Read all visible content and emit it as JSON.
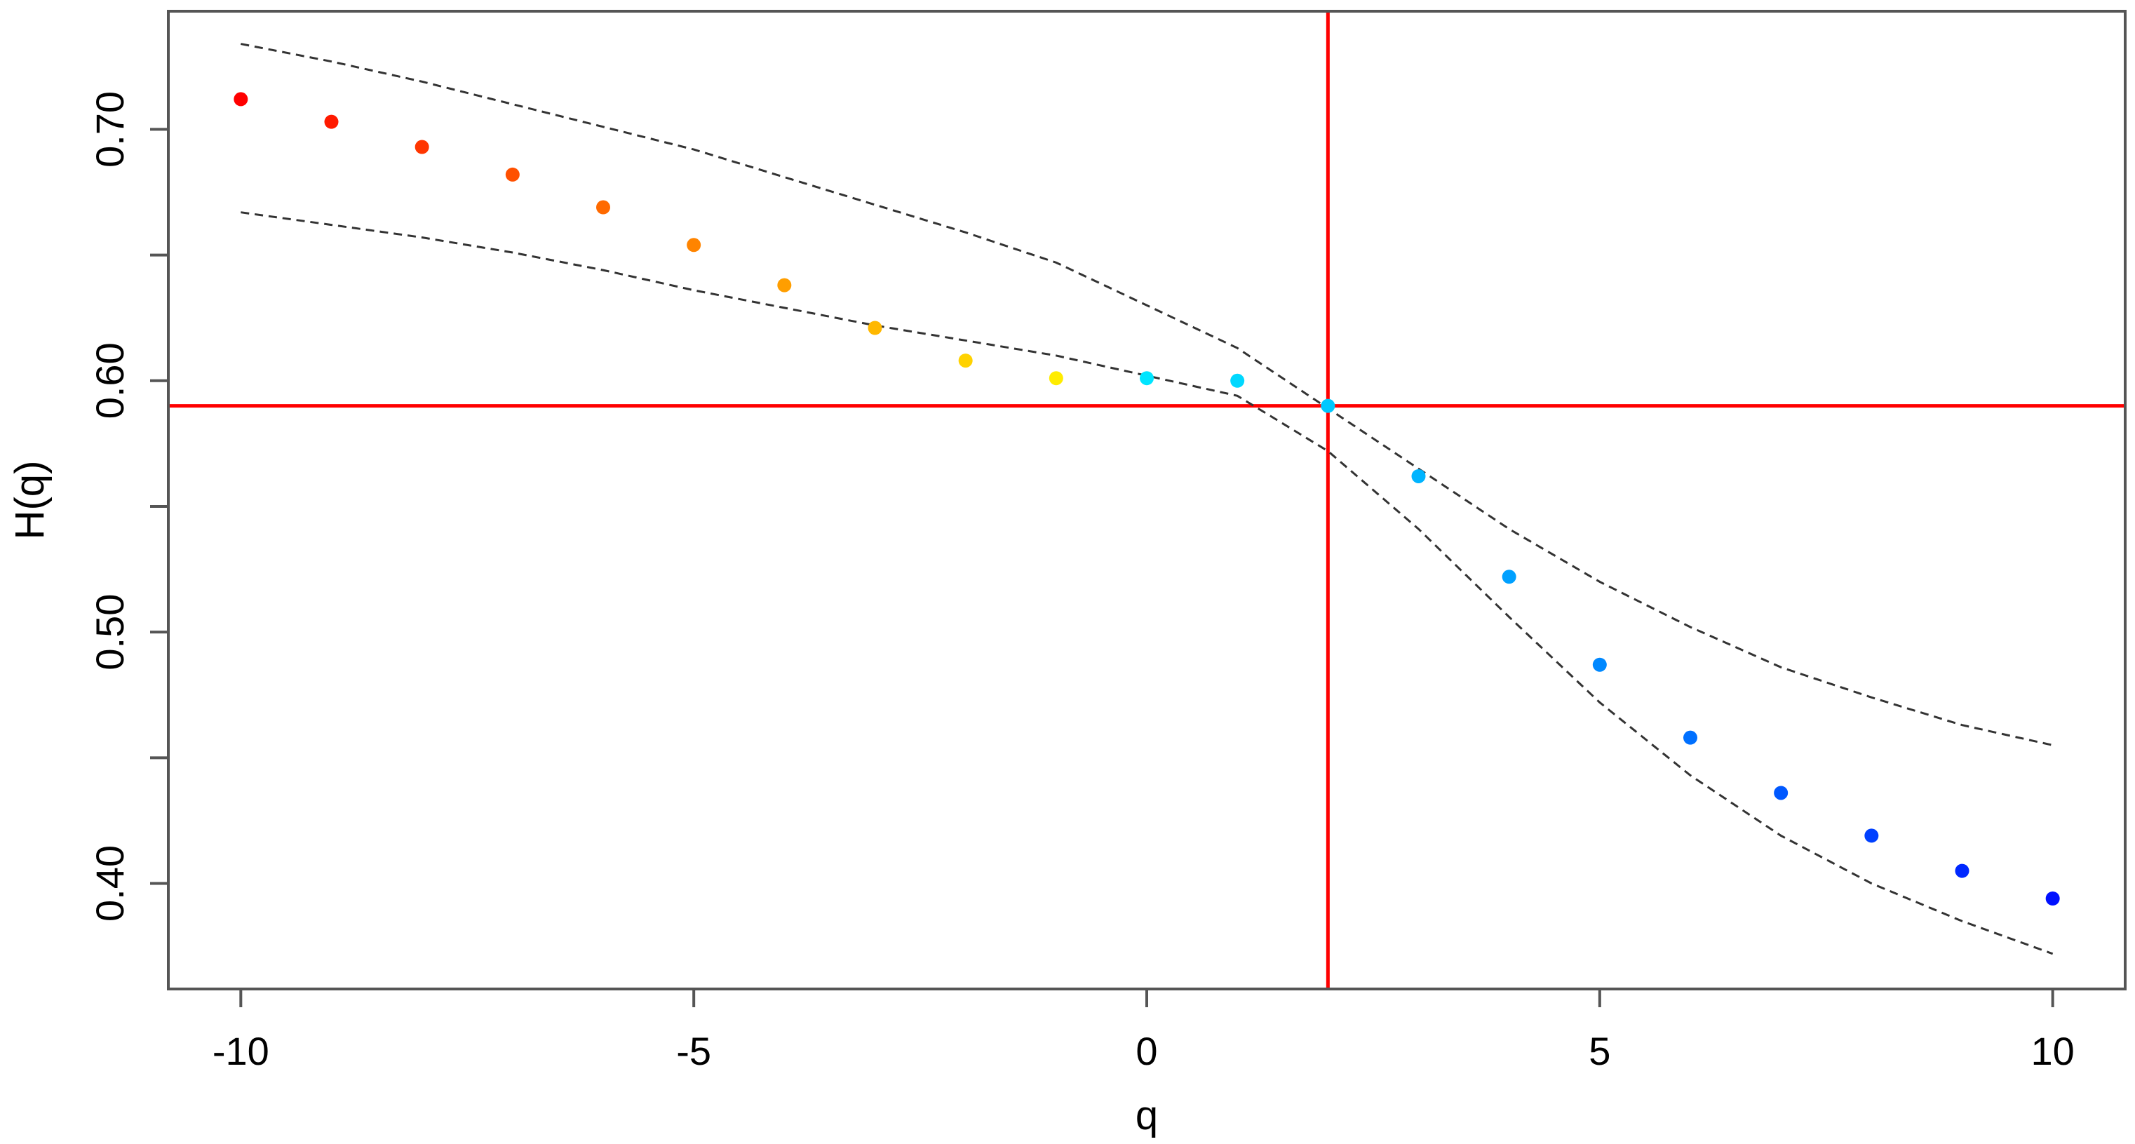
{
  "chart_data": {
    "type": "scatter",
    "title": "",
    "xlabel": "q",
    "ylabel": "H(q)",
    "xlim": [
      -10.8,
      10.8
    ],
    "ylim": [
      0.358,
      0.747
    ],
    "x_ticks": [
      -10,
      -5,
      0,
      5,
      10
    ],
    "x_tick_labels": [
      "-10",
      "-5",
      "0",
      "5",
      "10"
    ],
    "y_ticks": [
      0.4,
      0.45,
      0.5,
      0.55,
      0.6,
      0.65,
      0.7
    ],
    "y_tick_labels": [
      "0.40",
      "",
      "0.50",
      "",
      "0.60",
      "",
      "0.70"
    ],
    "grid": false,
    "legend": "none",
    "series": [
      {
        "type": "points",
        "x": [
          -10,
          -9,
          -8,
          -7,
          -6,
          -5,
          -4,
          -3,
          -2,
          -1,
          0,
          1,
          2,
          3,
          4,
          5,
          6,
          7,
          8,
          9,
          10
        ],
        "y": [
          0.712,
          0.703,
          0.693,
          0.682,
          0.669,
          0.654,
          0.638,
          0.621,
          0.608,
          0.601,
          0.601,
          0.6,
          0.59,
          0.562,
          0.522,
          0.487,
          0.458,
          0.436,
          0.419,
          0.405,
          0.394
        ],
        "colors": [
          "#ff0000",
          "#ff1a00",
          "#ff3600",
          "#ff5000",
          "#ff6a00",
          "#ff8400",
          "#ff9e00",
          "#ffb800",
          "#ffd200",
          "#ffec00",
          "#00e5ff",
          "#00d8ff",
          "#00c8ff",
          "#00b4ff",
          "#00a0ff",
          "#0088ff",
          "#0070ff",
          "#0058ff",
          "#0040ff",
          "#0028ff",
          "#0010ff"
        ]
      },
      {
        "type": "dashed-line",
        "x": [
          -10,
          -9,
          -8,
          -7,
          -6,
          -5,
          -4,
          -3,
          -2,
          -1,
          0,
          1,
          2,
          3,
          4,
          5,
          6,
          7,
          8,
          9,
          10
        ],
        "y": [
          0.734,
          0.727,
          0.719,
          0.71,
          0.701,
          0.692,
          0.681,
          0.67,
          0.659,
          0.647,
          0.63,
          0.613,
          0.589,
          0.565,
          0.541,
          0.52,
          0.502,
          0.486,
          0.474,
          0.463,
          0.455
        ],
        "color": "#333333"
      },
      {
        "type": "dashed-line",
        "x": [
          -10,
          -9,
          -8,
          -7,
          -6,
          -5,
          -4,
          -3,
          -2,
          -1,
          0,
          1,
          2,
          3,
          4,
          5,
          6,
          7,
          8,
          9,
          10
        ],
        "y": [
          0.667,
          0.662,
          0.657,
          0.651,
          0.644,
          0.636,
          0.629,
          0.622,
          0.616,
          0.61,
          0.602,
          0.594,
          0.572,
          0.541,
          0.506,
          0.472,
          0.443,
          0.419,
          0.4,
          0.385,
          0.372
        ],
        "color": "#333333"
      }
    ],
    "reference_lines": [
      {
        "orientation": "horizontal",
        "value": 0.59,
        "color": "#ff0000"
      },
      {
        "orientation": "vertical",
        "value": 2,
        "color": "#ff0000"
      }
    ]
  }
}
